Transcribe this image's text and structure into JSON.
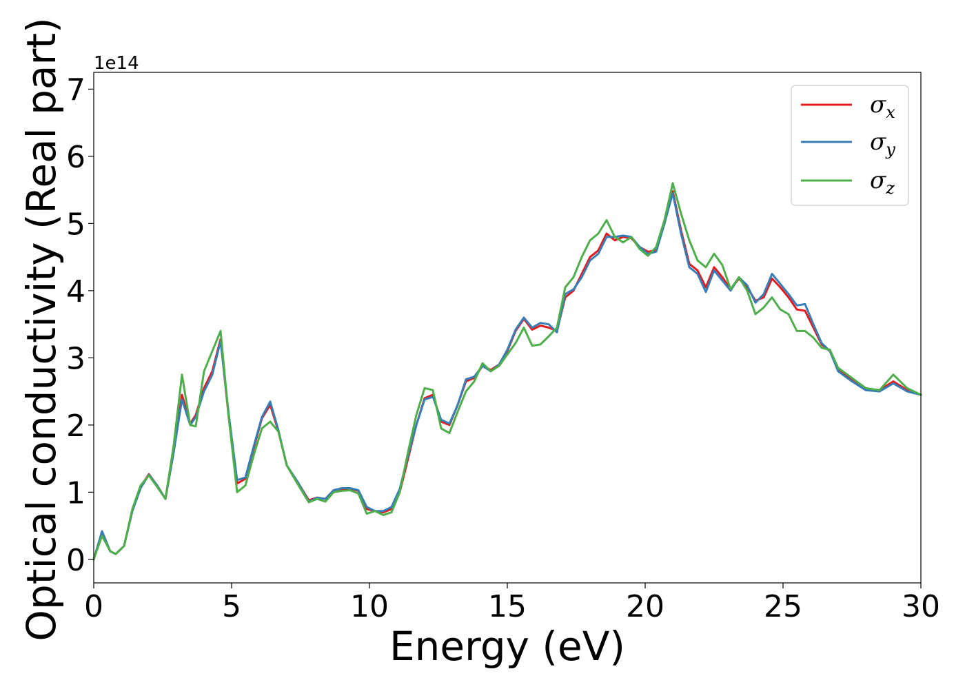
{
  "chart_data": {
    "type": "line",
    "title": "",
    "xlabel": "Energy (eV)",
    "ylabel": "Optical conductivity (Real part)",
    "y_offset_text": "1e14",
    "xlim": [
      0,
      30
    ],
    "ylim": [
      -0.35,
      7.25
    ],
    "x_ticks": [
      0,
      5,
      10,
      15,
      20,
      25,
      30
    ],
    "y_ticks": [
      0,
      1,
      2,
      3,
      4,
      5,
      6,
      7
    ],
    "grid": false,
    "legend_position": "top-right",
    "series": [
      {
        "name": "σx",
        "symbol": "σ",
        "subscript": "x",
        "color": "#e41a1c",
        "x": [
          0,
          0.3,
          0.6,
          0.8,
          1.1,
          1.4,
          1.7,
          2.0,
          2.3,
          2.6,
          2.9,
          3.2,
          3.5,
          3.7,
          4.0,
          4.3,
          4.6,
          4.9,
          5.2,
          5.5,
          5.8,
          6.1,
          6.4,
          6.7,
          7.0,
          7.4,
          7.8,
          8.1,
          8.4,
          8.7,
          9.0,
          9.3,
          9.6,
          9.9,
          10.2,
          10.5,
          10.8,
          11.1,
          11.4,
          11.7,
          12.0,
          12.3,
          12.6,
          12.9,
          13.2,
          13.5,
          13.8,
          14.1,
          14.4,
          14.7,
          15.0,
          15.3,
          15.6,
          15.9,
          16.2,
          16.5,
          16.8,
          17.1,
          17.4,
          17.7,
          18.0,
          18.3,
          18.6,
          18.9,
          19.2,
          19.5,
          19.8,
          20.1,
          20.4,
          20.7,
          21.0,
          21.3,
          21.6,
          21.9,
          22.2,
          22.5,
          22.8,
          23.1,
          23.4,
          23.7,
          24.0,
          24.3,
          24.6,
          24.9,
          25.2,
          25.5,
          25.8,
          26.1,
          26.4,
          26.7,
          27.0,
          27.5,
          28.0,
          28.5,
          29.0,
          29.5,
          30.0
        ],
        "values": [
          0,
          0.4,
          0.12,
          0.08,
          0.2,
          0.72,
          1.08,
          1.27,
          1.1,
          0.9,
          1.6,
          2.45,
          2.02,
          2.15,
          2.55,
          2.8,
          3.28,
          2.1,
          1.13,
          1.2,
          1.65,
          2.1,
          2.3,
          1.9,
          1.4,
          1.15,
          0.88,
          0.92,
          0.9,
          1.03,
          1.05,
          1.05,
          1.02,
          0.75,
          0.72,
          0.7,
          0.75,
          1.0,
          1.5,
          2.0,
          2.4,
          2.45,
          2.05,
          2.0,
          2.3,
          2.65,
          2.7,
          2.88,
          2.82,
          2.9,
          3.1,
          3.4,
          3.58,
          3.42,
          3.48,
          3.45,
          3.4,
          3.9,
          4.0,
          4.25,
          4.5,
          4.6,
          4.85,
          4.75,
          4.8,
          4.78,
          4.65,
          4.58,
          4.6,
          5.0,
          5.48,
          4.9,
          4.4,
          4.3,
          4.05,
          4.35,
          4.2,
          4.02,
          4.18,
          4.05,
          3.85,
          3.9,
          4.18,
          4.05,
          3.9,
          3.72,
          3.7,
          3.45,
          3.2,
          3.1,
          2.82,
          2.67,
          2.52,
          2.52,
          2.65,
          2.52,
          2.45
        ]
      },
      {
        "name": "σy",
        "symbol": "σ",
        "subscript": "y",
        "color": "#377eb8",
        "x": [
          0,
          0.3,
          0.6,
          0.8,
          1.1,
          1.4,
          1.7,
          2.0,
          2.3,
          2.6,
          2.9,
          3.2,
          3.5,
          3.7,
          4.0,
          4.3,
          4.6,
          4.9,
          5.2,
          5.5,
          5.8,
          6.1,
          6.4,
          6.7,
          7.0,
          7.4,
          7.8,
          8.1,
          8.4,
          8.7,
          9.0,
          9.3,
          9.6,
          9.9,
          10.2,
          10.5,
          10.8,
          11.1,
          11.4,
          11.7,
          12.0,
          12.3,
          12.6,
          12.9,
          13.2,
          13.5,
          13.8,
          14.1,
          14.4,
          14.7,
          15.0,
          15.3,
          15.6,
          15.9,
          16.2,
          16.5,
          16.8,
          17.1,
          17.4,
          17.7,
          18.0,
          18.3,
          18.6,
          18.9,
          19.2,
          19.5,
          19.8,
          20.1,
          20.4,
          20.7,
          21.0,
          21.3,
          21.6,
          21.9,
          22.2,
          22.5,
          22.8,
          23.1,
          23.4,
          23.7,
          24.0,
          24.3,
          24.6,
          24.9,
          25.2,
          25.5,
          25.8,
          26.1,
          26.4,
          26.7,
          27.0,
          27.5,
          28.0,
          28.5,
          29.0,
          29.5,
          30.0
        ],
        "values": [
          0,
          0.42,
          0.12,
          0.08,
          0.2,
          0.72,
          1.06,
          1.26,
          1.1,
          0.9,
          1.6,
          2.38,
          2.0,
          2.12,
          2.5,
          2.75,
          3.25,
          2.15,
          1.18,
          1.22,
          1.68,
          2.12,
          2.35,
          1.92,
          1.4,
          1.15,
          0.86,
          0.92,
          0.9,
          1.03,
          1.06,
          1.06,
          1.03,
          0.78,
          0.72,
          0.72,
          0.78,
          1.05,
          1.55,
          2.0,
          2.38,
          2.42,
          2.08,
          2.02,
          2.3,
          2.68,
          2.72,
          2.88,
          2.8,
          2.9,
          3.12,
          3.42,
          3.6,
          3.45,
          3.52,
          3.5,
          3.38,
          3.95,
          4.02,
          4.2,
          4.45,
          4.55,
          4.8,
          4.8,
          4.82,
          4.8,
          4.65,
          4.55,
          4.58,
          5.0,
          5.45,
          4.85,
          4.35,
          4.25,
          3.98,
          4.3,
          4.15,
          4.0,
          4.2,
          4.08,
          3.82,
          3.95,
          4.25,
          4.1,
          3.95,
          3.78,
          3.8,
          3.5,
          3.22,
          3.1,
          2.8,
          2.65,
          2.52,
          2.5,
          2.62,
          2.5,
          2.45
        ]
      },
      {
        "name": "σz",
        "symbol": "σ",
        "subscript": "z",
        "color": "#4daf4a",
        "x": [
          0,
          0.3,
          0.6,
          0.8,
          1.1,
          1.4,
          1.7,
          2.0,
          2.3,
          2.6,
          2.9,
          3.2,
          3.5,
          3.7,
          4.0,
          4.3,
          4.6,
          4.9,
          5.2,
          5.5,
          5.8,
          6.1,
          6.4,
          6.7,
          7.0,
          7.4,
          7.8,
          8.1,
          8.4,
          8.7,
          9.0,
          9.3,
          9.6,
          9.9,
          10.2,
          10.5,
          10.8,
          11.1,
          11.4,
          11.7,
          12.0,
          12.3,
          12.6,
          12.9,
          13.2,
          13.5,
          13.8,
          14.1,
          14.4,
          14.7,
          15.0,
          15.3,
          15.6,
          15.9,
          16.2,
          16.5,
          16.8,
          17.1,
          17.4,
          17.7,
          18.0,
          18.3,
          18.6,
          18.9,
          19.2,
          19.5,
          19.8,
          20.1,
          20.4,
          20.7,
          21.0,
          21.3,
          21.6,
          21.9,
          22.2,
          22.5,
          22.8,
          23.1,
          23.4,
          23.7,
          24.0,
          24.3,
          24.6,
          24.9,
          25.2,
          25.5,
          25.8,
          26.1,
          26.4,
          26.7,
          27.0,
          27.5,
          28.0,
          28.5,
          29.0,
          29.5,
          30.0
        ],
        "values": [
          0,
          0.35,
          0.12,
          0.08,
          0.2,
          0.75,
          1.1,
          1.25,
          1.08,
          0.9,
          1.7,
          2.75,
          2.0,
          1.98,
          2.8,
          3.1,
          3.4,
          2.1,
          1.0,
          1.1,
          1.55,
          1.95,
          2.05,
          1.9,
          1.4,
          1.12,
          0.85,
          0.9,
          0.86,
          1.0,
          1.02,
          1.03,
          0.98,
          0.68,
          0.72,
          0.66,
          0.7,
          1.0,
          1.6,
          2.15,
          2.55,
          2.52,
          1.95,
          1.88,
          2.2,
          2.5,
          2.65,
          2.92,
          2.8,
          2.88,
          3.05,
          3.22,
          3.45,
          3.18,
          3.2,
          3.32,
          3.45,
          4.05,
          4.2,
          4.5,
          4.75,
          4.85,
          5.05,
          4.8,
          4.72,
          4.8,
          4.62,
          4.52,
          4.65,
          5.05,
          5.6,
          5.15,
          4.75,
          4.45,
          4.35,
          4.55,
          4.38,
          4.02,
          4.2,
          4.0,
          3.65,
          3.75,
          3.9,
          3.72,
          3.65,
          3.4,
          3.4,
          3.3,
          3.15,
          3.12,
          2.85,
          2.7,
          2.55,
          2.52,
          2.75,
          2.55,
          2.45
        ]
      }
    ]
  }
}
